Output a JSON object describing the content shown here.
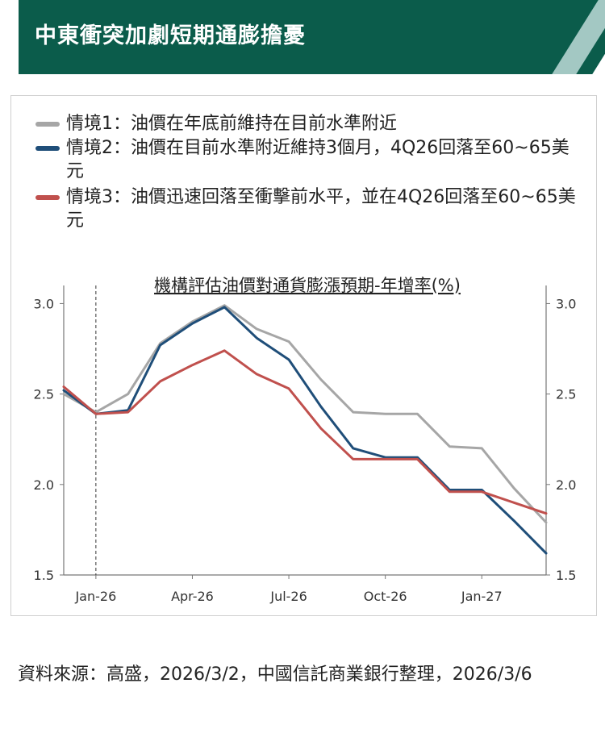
{
  "header": {
    "title": "中東衝突加劇短期通膨擔憂"
  },
  "legend": [
    {
      "label": "情境1：油價在年底前維持在目前水準附近",
      "color": "#a6a6a6"
    },
    {
      "label": "情境2：油價在目前水準附近維持3個月，4Q26回落至60~65美元",
      "color": "#1f4e79"
    },
    {
      "label": "情境3：油價迅速回落至衝擊前水平，並在4Q26回落至60~65美元",
      "color": "#c0504d"
    }
  ],
  "chart_data": {
    "type": "line",
    "title": "機構評估油價對通貨膨漲預期-年增率(%)",
    "xlabel": "",
    "ylabel": "",
    "x_tick_labels": [
      "Jan-26",
      "Apr-26",
      "Jul-26",
      "Oct-26",
      "Jan-27"
    ],
    "y_tick_labels": [
      "3.0",
      "2.5",
      "2.0",
      "1.5"
    ],
    "ylim": [
      1.5,
      3.1
    ],
    "grid": false,
    "legend_position": "top",
    "annotation": "vertical dashed line at Jan-26",
    "x": [
      "2025-12",
      "2026-01",
      "2026-02",
      "2026-03",
      "2026-04",
      "2026-05",
      "2026-06",
      "2026-07",
      "2026-08",
      "2026-09",
      "2026-10",
      "2026-11",
      "2026-12",
      "2027-01",
      "2027-02",
      "2027-03"
    ],
    "series": [
      {
        "name": "情境1",
        "color": "#a6a6a6",
        "values": [
          2.5,
          2.4,
          2.5,
          2.78,
          2.9,
          2.99,
          2.86,
          2.79,
          2.58,
          2.4,
          2.39,
          2.39,
          2.21,
          2.2,
          1.98,
          1.79
        ]
      },
      {
        "name": "情境2",
        "color": "#1f4e79",
        "values": [
          2.52,
          2.39,
          2.41,
          2.77,
          2.89,
          2.98,
          2.81,
          2.69,
          2.43,
          2.2,
          2.15,
          2.15,
          1.97,
          1.97,
          1.8,
          1.62
        ]
      },
      {
        "name": "情境3",
        "color": "#c0504d",
        "values": [
          2.54,
          2.39,
          2.4,
          2.57,
          2.66,
          2.74,
          2.61,
          2.53,
          2.31,
          2.14,
          2.14,
          2.14,
          1.96,
          1.96,
          1.9,
          1.84
        ]
      }
    ]
  },
  "footer": {
    "source": "資料來源：高盛，2026/3/2，中國信託商業銀行整理，2026/3/6"
  }
}
